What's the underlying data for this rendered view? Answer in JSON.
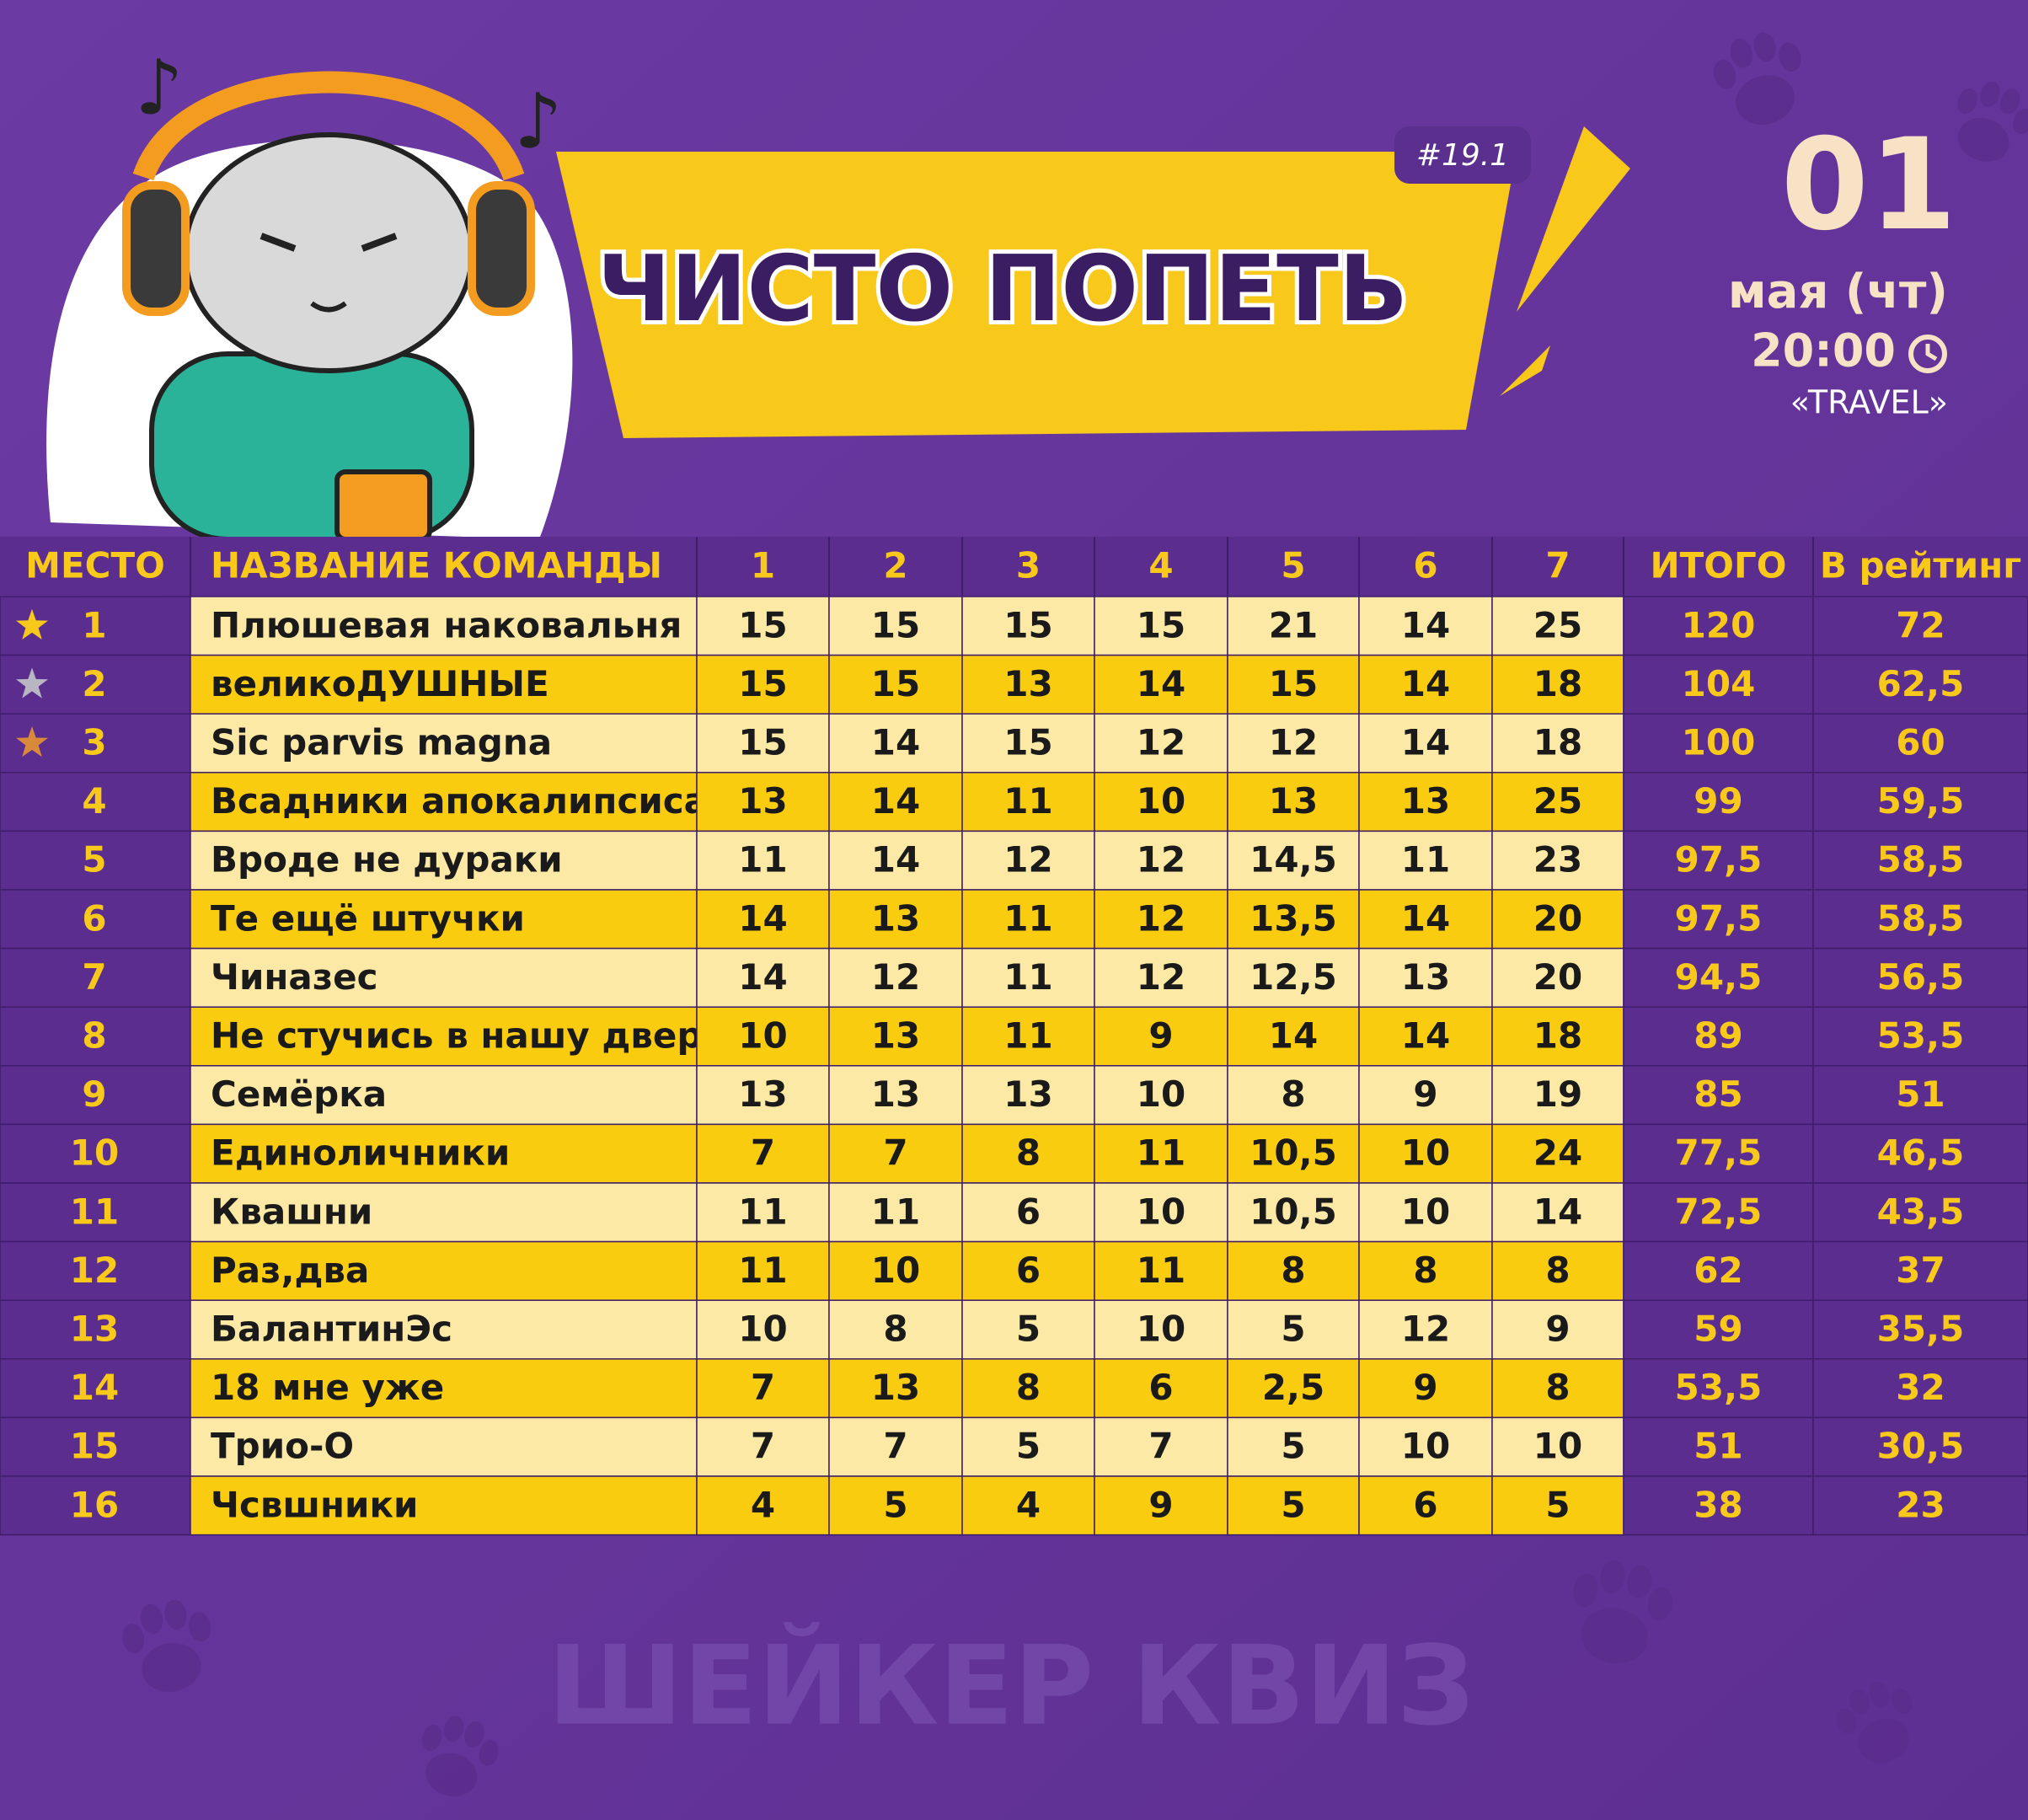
{
  "header": {
    "badge": "#19.1",
    "title": "ЧИСТО ПОПЕТЬ",
    "day": "01",
    "month_weekday": "мая (чт)",
    "time": "20:00",
    "venue": "«TRAVEL»"
  },
  "table": {
    "columns": [
      "МЕСТО",
      "НАЗВАНИЕ КОМАНДЫ",
      "1",
      "2",
      "3",
      "4",
      "5",
      "6",
      "7",
      "ИТОГО",
      "В рейтинг"
    ],
    "rows": [
      [
        "1",
        "Плюшевая наковальня",
        "15",
        "15",
        "15",
        "15",
        "21",
        "14",
        "25",
        "120",
        "72"
      ],
      [
        "2",
        "великоДУШНЫЕ",
        "15",
        "15",
        "13",
        "14",
        "15",
        "14",
        "18",
        "104",
        "62,5"
      ],
      [
        "3",
        "Sic parvis magna",
        "15",
        "14",
        "15",
        "12",
        "12",
        "14",
        "18",
        "100",
        "60"
      ],
      [
        "4",
        "Всадники апокалипсиса",
        "13",
        "14",
        "11",
        "10",
        "13",
        "13",
        "25",
        "99",
        "59,5"
      ],
      [
        "5",
        "Вроде не дураки",
        "11",
        "14",
        "12",
        "12",
        "14,5",
        "11",
        "23",
        "97,5",
        "58,5"
      ],
      [
        "6",
        "Те ещё штучки",
        "14",
        "13",
        "11",
        "12",
        "13,5",
        "14",
        "20",
        "97,5",
        "58,5"
      ],
      [
        "7",
        "Чиназес",
        "14",
        "12",
        "11",
        "12",
        "12,5",
        "13",
        "20",
        "94,5",
        "56,5"
      ],
      [
        "8",
        "Не стучись в нашу дверь",
        "10",
        "13",
        "11",
        "9",
        "14",
        "14",
        "18",
        "89",
        "53,5"
      ],
      [
        "9",
        "Семёрка",
        "13",
        "13",
        "13",
        "10",
        "8",
        "9",
        "19",
        "85",
        "51"
      ],
      [
        "10",
        "Единоличники",
        "7",
        "7",
        "8",
        "11",
        "10,5",
        "10",
        "24",
        "77,5",
        "46,5"
      ],
      [
        "11",
        "Квашни",
        "11",
        "11",
        "6",
        "10",
        "10,5",
        "10",
        "14",
        "72,5",
        "43,5"
      ],
      [
        "12",
        "Раз,два",
        "11",
        "10",
        "6",
        "11",
        "8",
        "8",
        "8",
        "62",
        "37"
      ],
      [
        "13",
        "БалантинЭс",
        "10",
        "8",
        "5",
        "10",
        "5",
        "12",
        "9",
        "59",
        "35,5"
      ],
      [
        "14",
        "18 мне уже",
        "7",
        "13",
        "8",
        "6",
        "2,5",
        "9",
        "8",
        "53,5",
        "32"
      ],
      [
        "15",
        "Трио-О",
        "7",
        "7",
        "5",
        "7",
        "5",
        "10",
        "10",
        "51",
        "30,5"
      ],
      [
        "16",
        "Чсвшники",
        "4",
        "5",
        "4",
        "9",
        "5",
        "6",
        "5",
        "38",
        "23"
      ]
    ]
  },
  "footer": {
    "brand": "ШЕЙКЕР КВИЗ"
  }
}
